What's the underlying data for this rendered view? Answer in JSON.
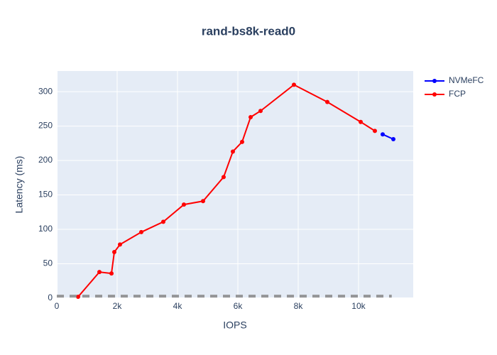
{
  "chart_data": {
    "type": "line",
    "title": "rand-bs8k-read0",
    "x_label": "IOPS",
    "y_label": "Latency (ms)",
    "xlim": [
      0,
      11812
    ],
    "ylim": [
      0,
      330
    ],
    "xticks": [
      0,
      {
        "value": 2000,
        "label": "2k"
      },
      {
        "value": 4000,
        "label": "4k"
      },
      {
        "value": 6000,
        "label": "6k"
      },
      {
        "value": 8000,
        "label": "8k"
      },
      {
        "value": 10000,
        "label": "10k"
      }
    ],
    "yticks": [
      0,
      50,
      100,
      150,
      200,
      250,
      300
    ],
    "grid": true,
    "legend": "outside-top-right",
    "series": [
      {
        "name": "NVMeFC",
        "color": "#0000ff",
        "x": [
          10800,
          11153
        ],
        "values": [
          238,
          231
        ]
      },
      {
        "name": "FCP",
        "color": "#ff0000",
        "x": [
          706,
          1412,
          1812,
          1906,
          2094,
          2800,
          3529,
          4212,
          4847,
          5529,
          5835,
          6141,
          6424,
          6753,
          7859,
          8965,
          10071,
          10541
        ],
        "values": [
          2,
          38,
          36,
          67,
          78,
          96,
          111,
          136,
          141,
          176,
          213,
          227,
          263,
          272,
          310,
          285,
          256,
          243
        ]
      },
      {
        "color": "#808080",
        "dash": true,
        "x": [
          0,
          11100
        ],
        "values": [
          3,
          3
        ]
      }
    ]
  }
}
